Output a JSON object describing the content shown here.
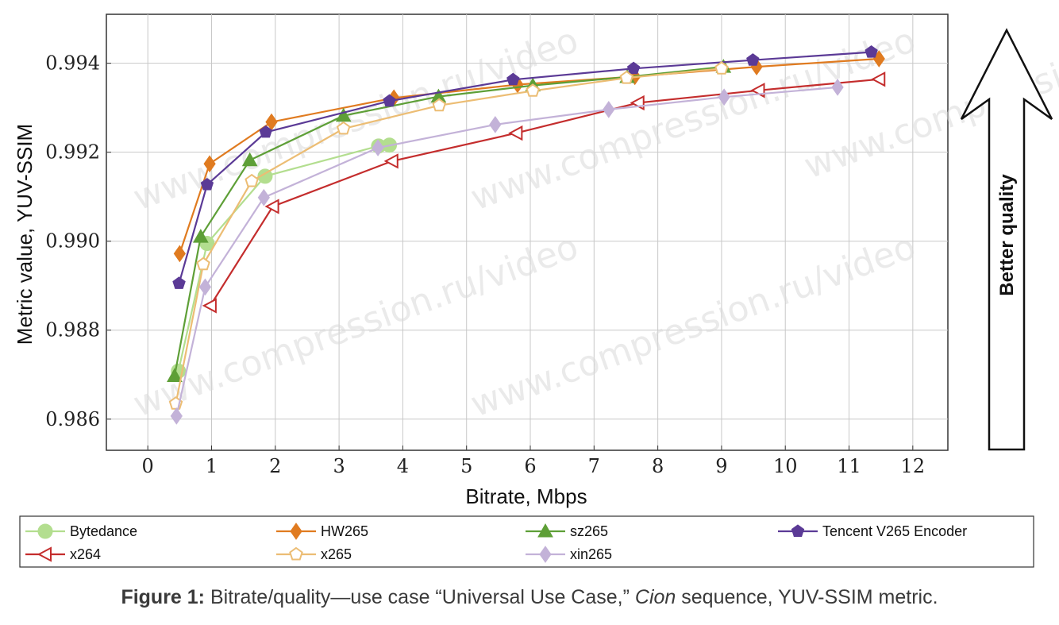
{
  "caption": {
    "label": "Figure 1:",
    "text1": " Bitrate/quality—use case “Universal Use Case,” ",
    "italic": "Cion",
    "text2": " sequence, YUV-SSIM metric."
  },
  "arrow_label": "Better quality",
  "watermark": "www.compression.ru/video",
  "chart_data": {
    "type": "line",
    "xlabel": "Bitrate, Mbps",
    "ylabel": "Metric value, YUV-SSIM",
    "xlim": [
      -0.65,
      12.55
    ],
    "ylim": [
      0.9853,
      0.9951
    ],
    "xticks": [
      0,
      1,
      2,
      3,
      4,
      5,
      6,
      7,
      8,
      9,
      10,
      11,
      12
    ],
    "yticks": [
      0.986,
      0.988,
      0.99,
      0.992,
      0.994
    ],
    "ytick_labels": [
      "0.986",
      "0.988",
      "0.990",
      "0.992",
      "0.994"
    ],
    "grid": true,
    "legend_placement": "bottom",
    "series": [
      {
        "name": "Bytedance",
        "color": "#b3de8f",
        "marker": "circle",
        "points": [
          [
            0.48,
            0.98708
          ],
          [
            0.93,
            0.98995
          ],
          [
            1.84,
            0.99146
          ],
          [
            3.62,
            0.99214
          ],
          [
            3.79,
            0.99216
          ]
        ]
      },
      {
        "name": "HW265",
        "color": "#e07b20",
        "marker": "diamond",
        "points": [
          [
            0.5,
            0.98972
          ],
          [
            0.97,
            0.99174
          ],
          [
            1.94,
            0.99268
          ],
          [
            3.86,
            0.99322
          ],
          [
            5.8,
            0.99352
          ],
          [
            7.64,
            0.9937
          ],
          [
            9.55,
            0.99392
          ],
          [
            11.47,
            0.9941
          ]
        ]
      },
      {
        "name": "sz265",
        "color": "#5e9f37",
        "marker": "triangle",
        "points": [
          [
            0.42,
            0.98697
          ],
          [
            0.83,
            0.9901
          ],
          [
            1.6,
            0.99182
          ],
          [
            3.07,
            0.99282
          ],
          [
            4.56,
            0.99325
          ],
          [
            6.04,
            0.9935
          ],
          [
            7.52,
            0.99369
          ],
          [
            9.03,
            0.99392
          ]
        ]
      },
      {
        "name": "Tencent V265 Encoder",
        "color": "#5b3a96",
        "marker": "pentagon",
        "points": [
          [
            0.49,
            0.98905
          ],
          [
            0.93,
            0.99127
          ],
          [
            1.85,
            0.99245
          ],
          [
            3.79,
            0.99315
          ],
          [
            5.73,
            0.99363
          ],
          [
            7.62,
            0.99388
          ],
          [
            9.49,
            0.99407
          ],
          [
            11.35,
            0.99425
          ]
        ]
      },
      {
        "name": "x264",
        "color": "#c42d2d",
        "marker": "triangle-left",
        "points": [
          [
            0.98,
            0.98855
          ],
          [
            1.96,
            0.99078
          ],
          [
            3.83,
            0.9918
          ],
          [
            5.78,
            0.99243
          ],
          [
            7.69,
            0.99311
          ],
          [
            9.58,
            0.99339
          ],
          [
            11.47,
            0.99364
          ]
        ]
      },
      {
        "name": "x265",
        "color": "#ecbd74",
        "marker": "pentagon-open",
        "points": [
          [
            0.44,
            0.98635
          ],
          [
            0.87,
            0.98948
          ],
          [
            1.63,
            0.99135
          ],
          [
            3.07,
            0.99253
          ],
          [
            4.57,
            0.99305
          ],
          [
            6.04,
            0.99338
          ],
          [
            7.51,
            0.99367
          ],
          [
            9.0,
            0.99388
          ]
        ]
      },
      {
        "name": "xin265",
        "color": "#c3b2d8",
        "marker": "diamond",
        "points": [
          [
            0.45,
            0.98607
          ],
          [
            0.9,
            0.98897
          ],
          [
            1.82,
            0.99098
          ],
          [
            3.61,
            0.9921
          ],
          [
            5.45,
            0.99262
          ],
          [
            7.23,
            0.99296
          ],
          [
            9.04,
            0.99324
          ],
          [
            10.82,
            0.99346
          ]
        ]
      }
    ]
  }
}
